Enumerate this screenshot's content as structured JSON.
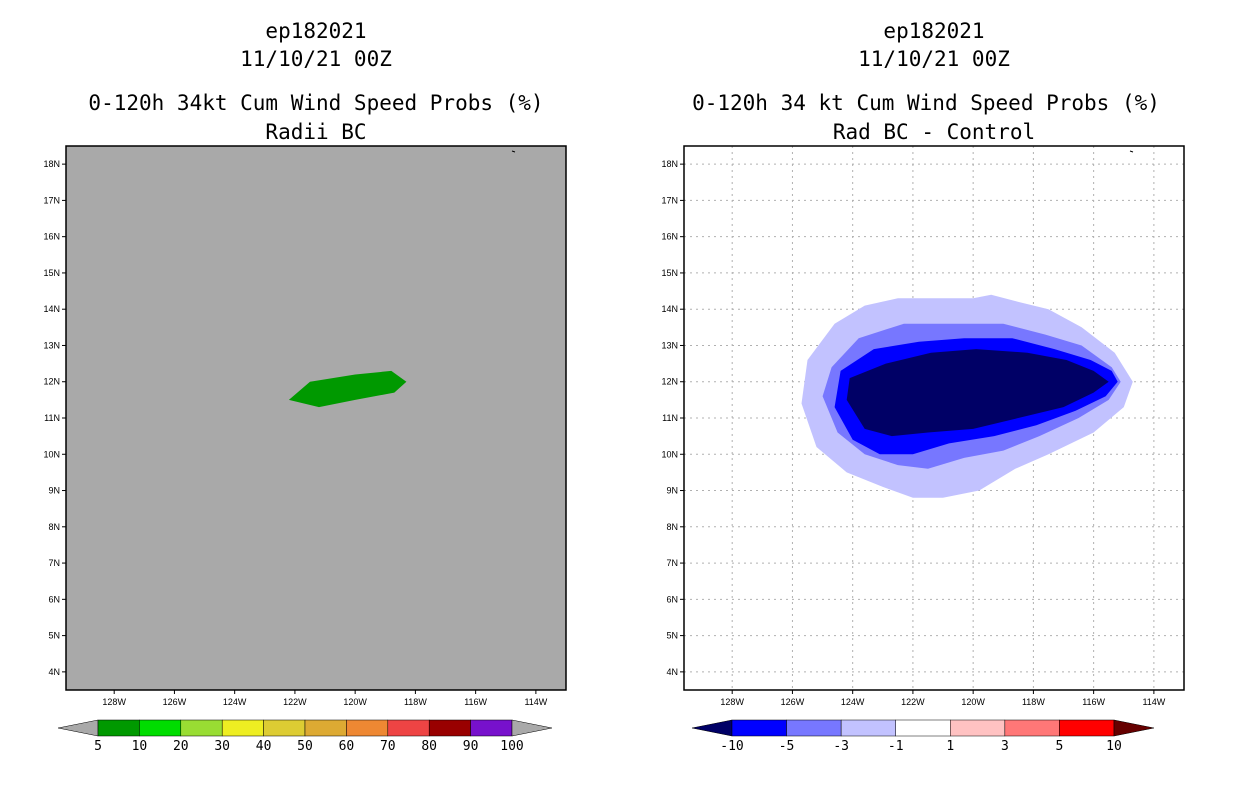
{
  "left_panel": {
    "storm_id": "ep182021",
    "datetime": "11/10/21 00Z",
    "title": "0-120h 34kt Cum Wind Speed Probs (%)",
    "subtitle": "Radii BC"
  },
  "right_panel": {
    "storm_id": "ep182021",
    "datetime": "11/10/21 00Z",
    "title": "0-120h 34 kt Cum Wind Speed Probs (%)",
    "subtitle": "Rad BC - Control"
  },
  "chart_data": [
    {
      "type": "heatmap",
      "name": "left-map",
      "title": "0-120h 34kt Cum Wind Speed Probs (%)",
      "subtitle": "Radii BC",
      "background_color": "#a9a9a9",
      "grid": false,
      "xlim": [
        -129.6,
        -113.0
      ],
      "ylim": [
        3.5,
        18.5
      ],
      "xticks": [
        -128,
        -126,
        -124,
        -122,
        -120,
        -118,
        -116,
        -114
      ],
      "xtick_labels": [
        "128W",
        "126W",
        "124W",
        "122W",
        "120W",
        "118W",
        "116W",
        "114W"
      ],
      "yticks": [
        4,
        5,
        6,
        7,
        8,
        9,
        10,
        11,
        12,
        13,
        14,
        15,
        16,
        17,
        18
      ],
      "ytick_labels": [
        "4N",
        "5N",
        "6N",
        "7N",
        "8N",
        "9N",
        "10N",
        "11N",
        "12N",
        "13N",
        "14N",
        "15N",
        "16N",
        "17N",
        "18N"
      ],
      "contours": [
        {
          "level": "5-10",
          "color": "#009900",
          "polygon": [
            [
              -122.2,
              11.5
            ],
            [
              -121.5,
              12.0
            ],
            [
              -120.0,
              12.2
            ],
            [
              -118.8,
              12.3
            ],
            [
              -118.3,
              12.0
            ],
            [
              -118.7,
              11.7
            ],
            [
              -120.0,
              11.5
            ],
            [
              -121.2,
              11.3
            ]
          ]
        }
      ],
      "colorbar": {
        "levels": [
          "5",
          "10",
          "20",
          "30",
          "40",
          "50",
          "60",
          "70",
          "80",
          "90",
          "100"
        ],
        "colors": [
          "#009900",
          "#00dd00",
          "#99dd33",
          "#eeee22",
          "#ddcc33",
          "#ddaa33",
          "#ee8833",
          "#ee4444",
          "#990000",
          "#7711cc"
        ],
        "under_color": "#a9a9a9",
        "over_color": "#a9a9a9"
      }
    },
    {
      "type": "heatmap",
      "name": "right-map",
      "title": "0-120h 34 kt Cum Wind Speed Probs (%)",
      "subtitle": "Rad BC - Control",
      "background_color": "#ffffff",
      "grid": true,
      "xlim": [
        -129.6,
        -113.0
      ],
      "ylim": [
        3.5,
        18.5
      ],
      "xticks": [
        -128,
        -126,
        -124,
        -122,
        -120,
        -118,
        -116,
        -114
      ],
      "xtick_labels": [
        "128W",
        "126W",
        "124W",
        "122W",
        "120W",
        "118W",
        "116W",
        "114W"
      ],
      "yticks": [
        4,
        5,
        6,
        7,
        8,
        9,
        10,
        11,
        12,
        13,
        14,
        15,
        16,
        17,
        18
      ],
      "ytick_labels": [
        "4N",
        "5N",
        "6N",
        "7N",
        "8N",
        "9N",
        "10N",
        "11N",
        "12N",
        "13N",
        "14N",
        "15N",
        "16N",
        "17N",
        "18N"
      ],
      "contours": [
        {
          "level": "-3 to -1",
          "color": "#c2c2ff",
          "polygon": [
            [
              -125.7,
              11.4
            ],
            [
              -125.5,
              12.6
            ],
            [
              -124.6,
              13.6
            ],
            [
              -123.6,
              14.1
            ],
            [
              -122.5,
              14.3
            ],
            [
              -121.2,
              14.3
            ],
            [
              -120.0,
              14.3
            ],
            [
              -119.4,
              14.4
            ],
            [
              -118.5,
              14.2
            ],
            [
              -117.5,
              14.0
            ],
            [
              -116.4,
              13.5
            ],
            [
              -115.3,
              12.8
            ],
            [
              -114.7,
              12.0
            ],
            [
              -115.0,
              11.3
            ],
            [
              -116.0,
              10.6
            ],
            [
              -117.5,
              10.0
            ],
            [
              -118.6,
              9.6
            ],
            [
              -119.8,
              9.0
            ],
            [
              -121.0,
              8.8
            ],
            [
              -122.0,
              8.8
            ],
            [
              -123.0,
              9.1
            ],
            [
              -124.2,
              9.5
            ],
            [
              -125.2,
              10.2
            ]
          ]
        },
        {
          "level": "-5 to -3",
          "color": "#7777ff",
          "polygon": [
            [
              -125.0,
              11.6
            ],
            [
              -124.7,
              12.4
            ],
            [
              -123.8,
              13.2
            ],
            [
              -122.3,
              13.6
            ],
            [
              -120.5,
              13.6
            ],
            [
              -119.0,
              13.6
            ],
            [
              -117.6,
              13.3
            ],
            [
              -116.4,
              13.0
            ],
            [
              -115.4,
              12.4
            ],
            [
              -115.1,
              12.0
            ],
            [
              -115.5,
              11.5
            ],
            [
              -116.5,
              11.0
            ],
            [
              -117.8,
              10.5
            ],
            [
              -119.0,
              10.1
            ],
            [
              -120.3,
              9.9
            ],
            [
              -121.5,
              9.6
            ],
            [
              -122.5,
              9.7
            ],
            [
              -123.6,
              10.0
            ],
            [
              -124.5,
              10.6
            ]
          ]
        },
        {
          "level": "-10 to -5",
          "color": "#0000ff",
          "polygon": [
            [
              -124.6,
              11.3
            ],
            [
              -124.4,
              12.3
            ],
            [
              -123.3,
              12.9
            ],
            [
              -121.8,
              13.1
            ],
            [
              -120.3,
              13.2
            ],
            [
              -118.7,
              13.2
            ],
            [
              -117.3,
              12.9
            ],
            [
              -116.1,
              12.6
            ],
            [
              -115.4,
              12.3
            ],
            [
              -115.2,
              12.0
            ],
            [
              -115.6,
              11.6
            ],
            [
              -116.6,
              11.2
            ],
            [
              -117.9,
              10.8
            ],
            [
              -119.3,
              10.5
            ],
            [
              -120.8,
              10.3
            ],
            [
              -122.0,
              10.0
            ],
            [
              -123.1,
              10.0
            ],
            [
              -124.0,
              10.4
            ]
          ]
        },
        {
          "level": "< -10",
          "color": "#000066",
          "polygon": [
            [
              -124.2,
              11.5
            ],
            [
              -124.1,
              12.1
            ],
            [
              -122.9,
              12.5
            ],
            [
              -121.4,
              12.8
            ],
            [
              -119.9,
              12.9
            ],
            [
              -118.2,
              12.8
            ],
            [
              -116.9,
              12.6
            ],
            [
              -116.0,
              12.3
            ],
            [
              -115.5,
              12.0
            ],
            [
              -116.0,
              11.7
            ],
            [
              -117.0,
              11.3
            ],
            [
              -118.5,
              11.0
            ],
            [
              -120.0,
              10.7
            ],
            [
              -121.5,
              10.6
            ],
            [
              -122.7,
              10.5
            ],
            [
              -123.6,
              10.7
            ]
          ]
        }
      ],
      "colorbar": {
        "levels": [
          "-10",
          "-5",
          "-3",
          "-1",
          "1",
          "3",
          "5",
          "10"
        ],
        "colors": [
          "#0000ff",
          "#7777ff",
          "#c2c2ff",
          "#ffffff",
          "#ffc2c2",
          "#ff7777",
          "#ff0000"
        ],
        "under_color": "#000066",
        "over_color": "#660000"
      }
    }
  ]
}
